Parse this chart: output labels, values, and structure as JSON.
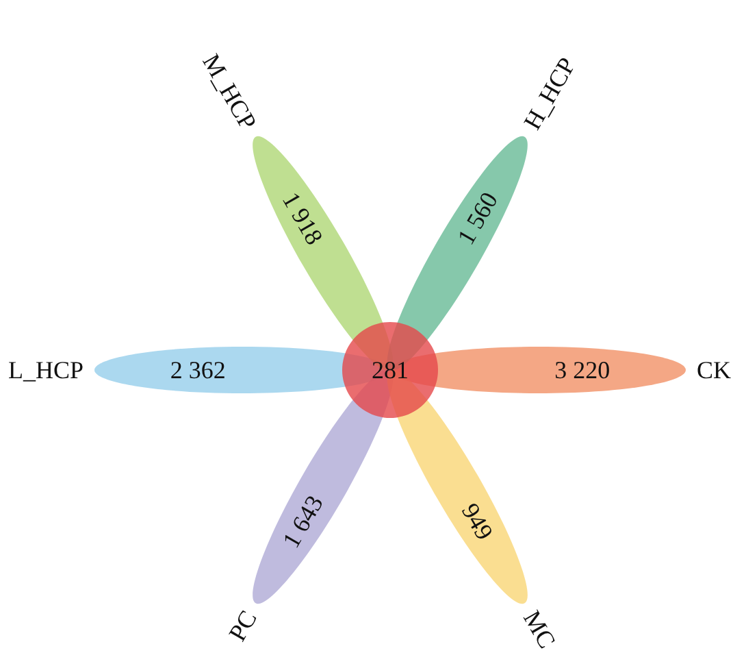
{
  "chart_data": {
    "type": "other",
    "categories": [
      "CK",
      "H_HCP",
      "M_HCP",
      "L_HCP",
      "PC",
      "MC"
    ],
    "values": [
      3220,
      1560,
      1918,
      2362,
      1643,
      949
    ],
    "value_labels": [
      "3 220",
      "1 560",
      "1 918",
      "2 362",
      "1 643",
      "949"
    ],
    "colors": [
      "#f0895c",
      "#5db58f",
      "#a9d46c",
      "#8fcbe9",
      "#aaa4d3",
      "#f8d36c"
    ],
    "annotations": [
      "281"
    ]
  }
}
